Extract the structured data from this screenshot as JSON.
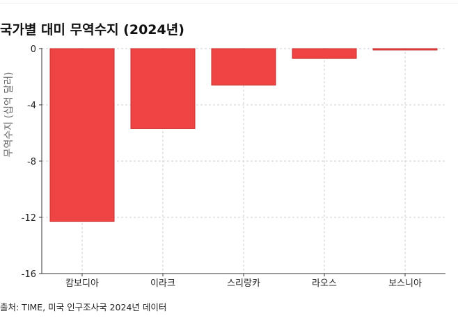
{
  "page": {
    "source": "출처: TIME, 미국 인구조사국 2024년 데이터"
  },
  "chart_data": {
    "type": "bar",
    "title": "국가별 대미 무역수지 (2024년)",
    "ylabel": "무역수지 (십억 달러)",
    "xlabel": "",
    "categories": [
      "캄보디아",
      "이라크",
      "스리랑카",
      "라오스",
      "보스니아"
    ],
    "values": [
      -12.3,
      -5.7,
      -2.6,
      -0.7,
      -0.1
    ],
    "ylim": [
      -16,
      0
    ],
    "yticks": [
      "0",
      "-4",
      "-8",
      "-12",
      "-16"
    ],
    "grid": true,
    "colors": {
      "bar": "#ef4444",
      "bar_edge": "#c53030",
      "grid": "#cccccc",
      "axis": "#333333"
    }
  }
}
